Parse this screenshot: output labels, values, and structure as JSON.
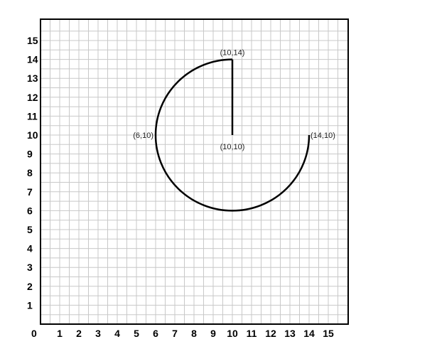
{
  "chart_data": {
    "type": "line",
    "x_ticks": [
      "1",
      "2",
      "3",
      "4",
      "5",
      "6",
      "7",
      "8",
      "9",
      "10",
      "11",
      "12",
      "13",
      "14",
      "15"
    ],
    "y_ticks": [
      "1",
      "2",
      "3",
      "4",
      "5",
      "6",
      "7",
      "8",
      "9",
      "10",
      "11",
      "12",
      "13",
      "14",
      "15"
    ],
    "origin_label": "0",
    "xlim": [
      0,
      15.5
    ],
    "ylim": [
      0,
      15.5
    ],
    "grid": true,
    "colors": {
      "grid": "#c8c8c8",
      "axes": "#000000",
      "curve": "#000000"
    },
    "shape": {
      "center": {
        "x": 10,
        "y": 10
      },
      "radius": 4,
      "arc_from_deg": 0,
      "arc_to_deg": 90,
      "arc_direction": "clockwise",
      "description_segments": [
        {
          "from": [
            10,
            10
          ],
          "to": [
            10,
            14
          ]
        }
      ]
    },
    "points": [
      {
        "label": "(10,14)",
        "x": 10,
        "y": 14,
        "anchor": "above"
      },
      {
        "label": "(6,10)",
        "x": 6,
        "y": 10,
        "anchor": "left"
      },
      {
        "label": "(10,10)",
        "x": 10,
        "y": 10,
        "anchor": "below"
      },
      {
        "label": "(14,10)",
        "x": 14,
        "y": 10,
        "anchor": "right"
      }
    ]
  }
}
